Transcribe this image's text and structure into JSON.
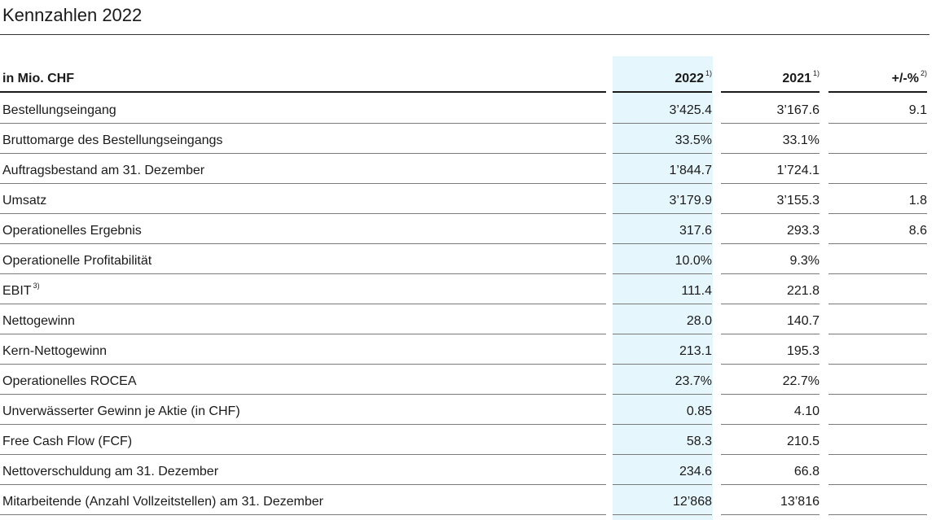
{
  "title": "Kennzahlen 2022",
  "header": {
    "unit_label": "in Mio. CHF",
    "col_2022": "2022",
    "col_2022_note": "1)",
    "col_2021": "2021",
    "col_2021_note": "1)",
    "col_pct": "+/-%",
    "col_pct_note": "2)"
  },
  "rows": [
    {
      "label": "Bestellungseingang",
      "note": "",
      "v2022": "3’425.4",
      "v2021": "3’167.6",
      "pct": "9.1"
    },
    {
      "label": "Bruttomarge des Bestellungseingangs",
      "note": "",
      "v2022": "33.5%",
      "v2021": "33.1%",
      "pct": ""
    },
    {
      "label": "Auftragsbestand am 31. Dezember",
      "note": "",
      "v2022": "1’844.7",
      "v2021": "1’724.1",
      "pct": ""
    },
    {
      "label": "Umsatz",
      "note": "",
      "v2022": "3’179.9",
      "v2021": "3’155.3",
      "pct": "1.8"
    },
    {
      "label": "Operationelles Ergebnis",
      "note": "",
      "v2022": "317.6",
      "v2021": "293.3",
      "pct": "8.6"
    },
    {
      "label": "Operationelle Profitabilität",
      "note": "",
      "v2022": "10.0%",
      "v2021": "9.3%",
      "pct": ""
    },
    {
      "label": "EBIT",
      "note": "3)",
      "v2022": "111.4",
      "v2021": "221.8",
      "pct": ""
    },
    {
      "label": "Nettogewinn",
      "note": "",
      "v2022": "28.0",
      "v2021": "140.7",
      "pct": ""
    },
    {
      "label": "Kern-Nettogewinn",
      "note": "",
      "v2022": "213.1",
      "v2021": "195.3",
      "pct": ""
    },
    {
      "label": "Operationelles ROCEA",
      "note": "",
      "v2022": "23.7%",
      "v2021": "22.7%",
      "pct": ""
    },
    {
      "label": "Unverwässerter Gewinn je Aktie (in CHF)",
      "note": "",
      "v2022": "0.85",
      "v2021": "4.10",
      "pct": ""
    },
    {
      "label": "Free Cash Flow (FCF)",
      "note": "",
      "v2022": "58.3",
      "v2021": "210.5",
      "pct": ""
    },
    {
      "label": "Nettoverschuldung am 31. Dezember",
      "note": "",
      "v2022": "234.6",
      "v2021": "66.8",
      "pct": ""
    },
    {
      "label": "Mitarbeitende (Anzahl Vollzeitstellen) am 31. Dezember",
      "note": "",
      "v2022": "12’868",
      "v2021": "13’816",
      "pct": ""
    }
  ]
}
